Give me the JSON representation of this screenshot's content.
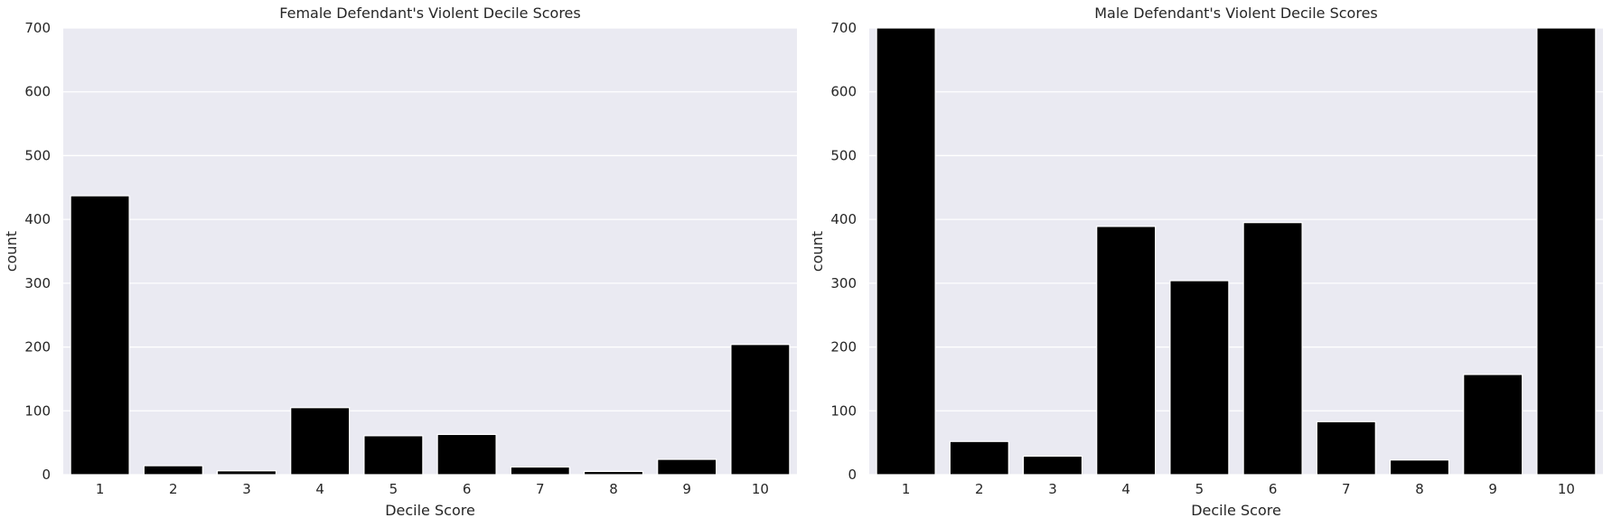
{
  "chart_data": [
    {
      "type": "bar",
      "title": "Female Defendant's Violent Decile Scores",
      "xlabel": "Decile Score",
      "ylabel": "count",
      "categories": [
        "1",
        "2",
        "3",
        "4",
        "5",
        "6",
        "7",
        "8",
        "9",
        "10"
      ],
      "values": [
        437,
        14,
        6,
        105,
        61,
        63,
        12,
        5,
        24,
        204
      ],
      "ylim": [
        0,
        700
      ],
      "yticks": [
        0,
        100,
        200,
        300,
        400,
        500,
        600,
        700
      ],
      "grid": true,
      "bar_color": "#000000",
      "background_color": "#eaeaf2"
    },
    {
      "type": "bar",
      "title": "Male Defendant's Violent Decile Scores",
      "xlabel": "Decile Score",
      "ylabel": "count",
      "categories": [
        "1",
        "2",
        "3",
        "4",
        "5",
        "6",
        "7",
        "8",
        "9",
        "10"
      ],
      "values": [
        700,
        52,
        29,
        389,
        304,
        395,
        83,
        23,
        157,
        700
      ],
      "ylim": [
        0,
        700
      ],
      "yticks": [
        0,
        100,
        200,
        300,
        400,
        500,
        600,
        700
      ],
      "grid": true,
      "bar_color": "#000000",
      "background_color": "#eaeaf2"
    }
  ]
}
